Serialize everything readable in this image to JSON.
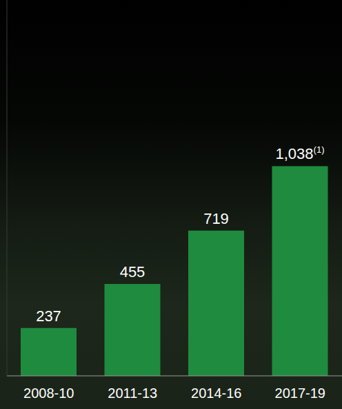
{
  "chart_data": {
    "type": "bar",
    "categories": [
      "2008-10",
      "2011-13",
      "2014-16",
      "2017-19"
    ],
    "values": [
      237,
      455,
      719,
      1038
    ],
    "value_labels": [
      "237",
      "455",
      "719",
      "1,038(1)"
    ],
    "color": "#1e8b3e",
    "ylim": [
      0,
      1860
    ],
    "data_labels": true,
    "tick_labels": "x",
    "grid": false
  }
}
